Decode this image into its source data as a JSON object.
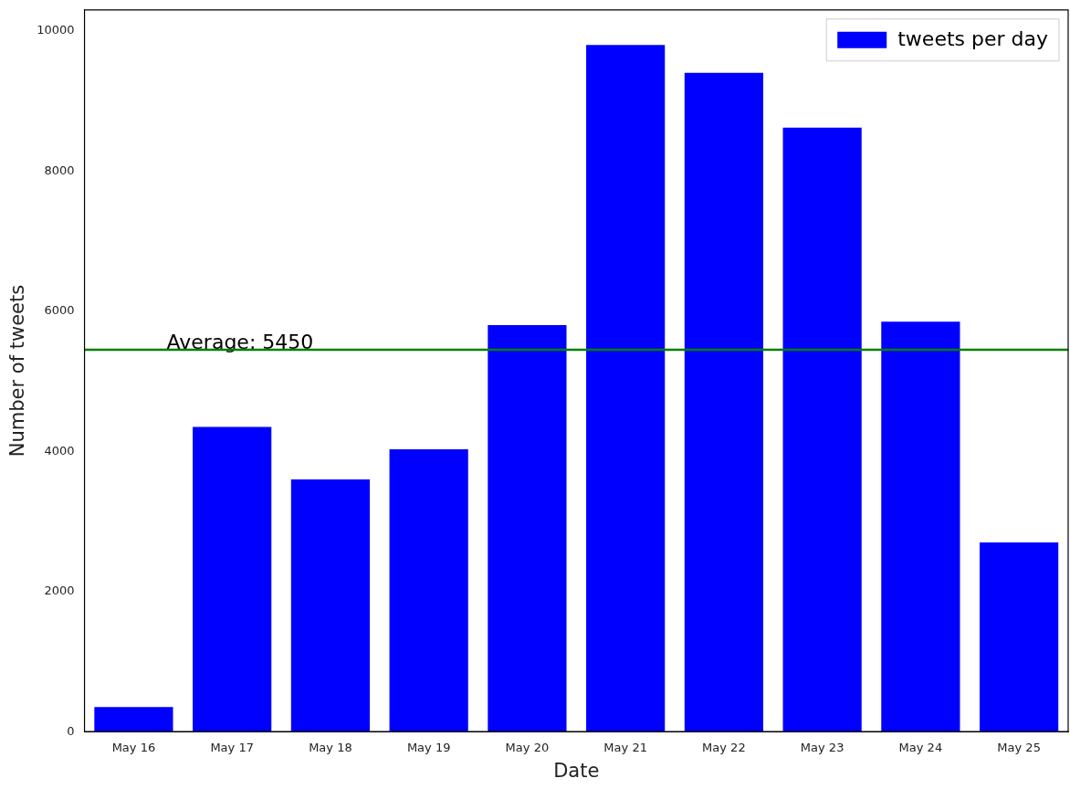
{
  "chart_data": {
    "type": "bar",
    "xlabel": "Date",
    "ylabel": "Number of tweets",
    "categories": [
      "May 16",
      "May 17",
      "May 18",
      "May 19",
      "May 20",
      "May 21",
      "May 22",
      "May 23",
      "May 24",
      "May 25"
    ],
    "series": [
      {
        "name": "tweets per day",
        "color": "#0000ff",
        "values": [
          350,
          4350,
          3600,
          4030,
          5800,
          9800,
          9400,
          8620,
          5850,
          2700
        ]
      }
    ],
    "ylim": [
      0,
      10300
    ],
    "yticks": [
      0,
      2000,
      4000,
      6000,
      8000,
      10000
    ],
    "ref_lines": [
      {
        "axis": "y",
        "value": 5450,
        "label": "Average: 5450",
        "color": "#008000",
        "line_style": "solid"
      }
    ],
    "legend": "top right",
    "grid": false
  }
}
